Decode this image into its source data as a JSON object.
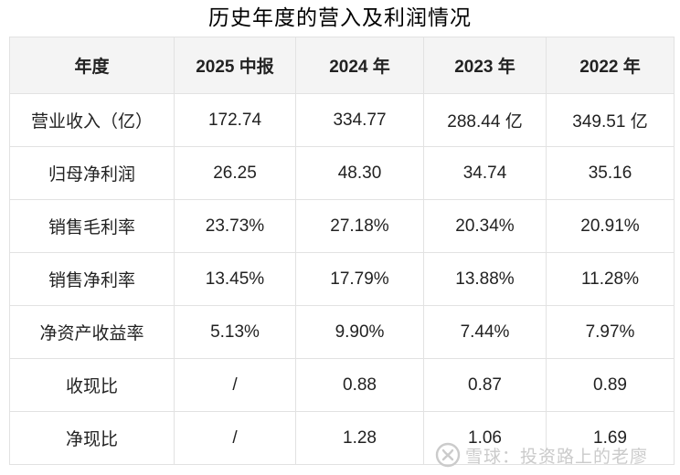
{
  "title": "历史年度的营入及利润情况",
  "chart_data": {
    "type": "table",
    "title": "历史年度的营入及利润情况",
    "columns": [
      "年度",
      "2025 中报",
      "2024 年",
      "2023 年",
      "2022 年"
    ],
    "rows": [
      {
        "label": "营业收入（亿）",
        "values": [
          "172.74",
          "334.77",
          "288.44 亿",
          "349.51 亿"
        ]
      },
      {
        "label": "归母净利润",
        "values": [
          "26.25",
          "48.30",
          "34.74",
          "35.16"
        ]
      },
      {
        "label": "销售毛利率",
        "values": [
          "23.73%",
          "27.18%",
          "20.34%",
          "20.91%"
        ]
      },
      {
        "label": "销售净利率",
        "values": [
          "13.45%",
          "17.79%",
          "13.88%",
          "11.28%"
        ]
      },
      {
        "label": "净资产收益率",
        "values": [
          "5.13%",
          "9.90%",
          "7.44%",
          "7.97%"
        ]
      },
      {
        "label": "收现比",
        "values": [
          "/",
          "0.88",
          "0.87",
          "0.89"
        ]
      },
      {
        "label": "净现比",
        "values": [
          "/",
          "1.28",
          "1.06",
          "1.69"
        ]
      }
    ],
    "layout": {
      "header_row": true,
      "grid": true,
      "first_column_is_label": true
    }
  },
  "watermark": {
    "text": "雪球：投资路上的老廖",
    "icon": "xueqiu-logo"
  },
  "colors": {
    "background": "#ffffff",
    "header_bg": "#f4f4f4",
    "border": "#e2e2e2",
    "text": "#222222",
    "watermark": "#cbcbcb"
  }
}
